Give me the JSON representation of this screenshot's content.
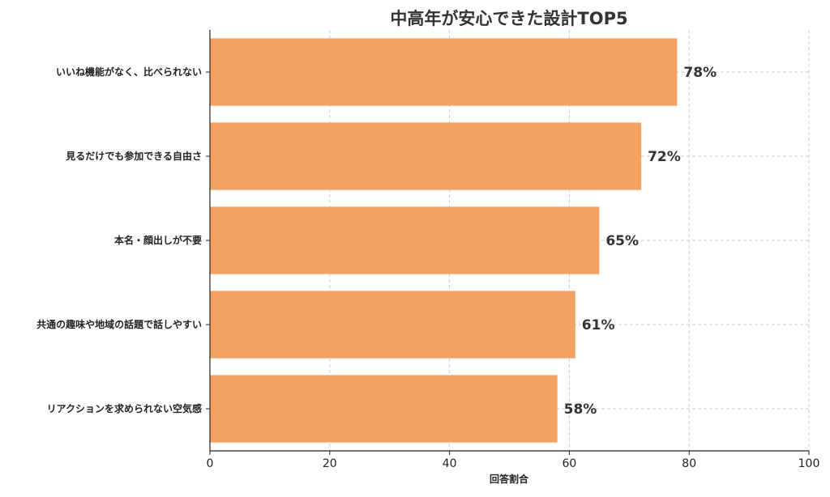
{
  "chart_data": {
    "type": "bar",
    "orientation": "horizontal",
    "title": "中高年が安心できた設計TOP5",
    "xlabel": "回答割合",
    "ylabel": "",
    "xlim": [
      0,
      100
    ],
    "x_ticks": [
      0,
      20,
      40,
      60,
      80,
      100
    ],
    "grid": true,
    "categories": [
      "いいね機能がなく、比べられない",
      "見るだけでも参加できる自由さ",
      "本名・顔出しが不要",
      "共通の趣味や地域の話題で話しやすい",
      "リアクションを求められない空気感"
    ],
    "values": [
      78,
      72,
      65,
      61,
      58
    ],
    "data_labels": [
      "78%",
      "72%",
      "65%",
      "61%",
      "58%"
    ],
    "bar_color": "#f4a261"
  }
}
